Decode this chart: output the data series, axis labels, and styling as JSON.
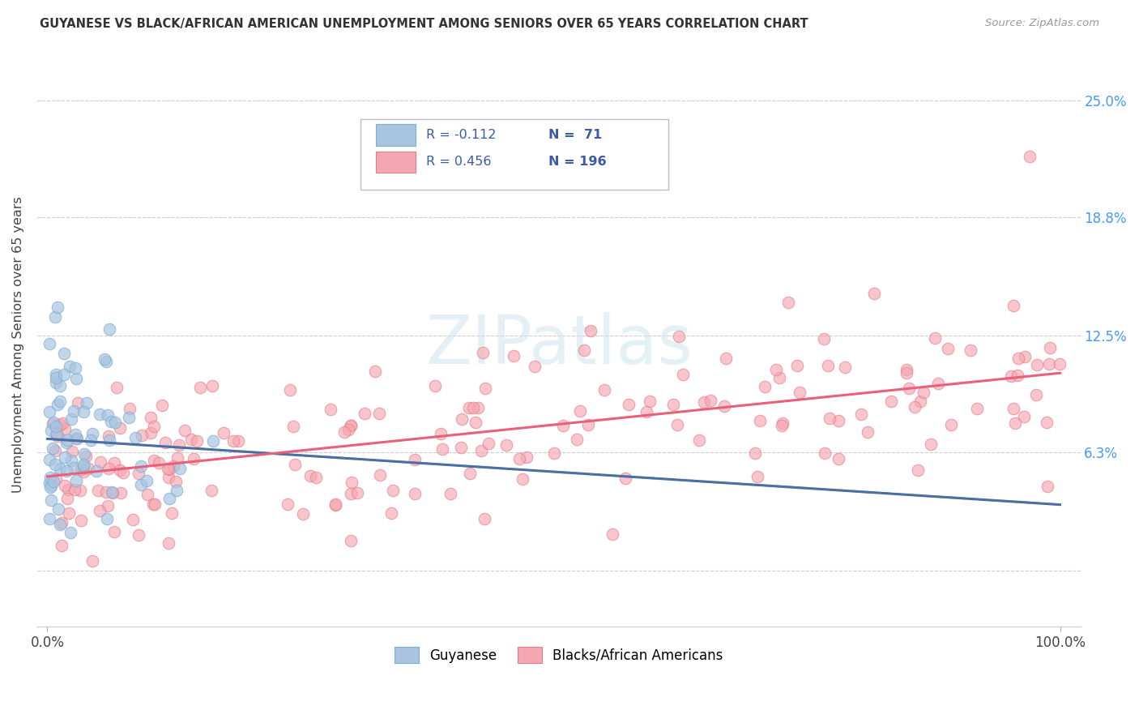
{
  "title": "GUYANESE VS BLACK/AFRICAN AMERICAN UNEMPLOYMENT AMONG SENIORS OVER 65 YEARS CORRELATION CHART",
  "source": "Source: ZipAtlas.com",
  "ylabel": "Unemployment Among Seniors over 65 years",
  "ytick_vals": [
    0.0,
    6.3,
    12.5,
    18.8,
    25.0
  ],
  "ytick_labels": [
    "",
    "6.3%",
    "12.5%",
    "18.8%",
    "25.0%"
  ],
  "xlim": [
    -1,
    102
  ],
  "ylim": [
    -3,
    27
  ],
  "color_blue": "#A8C4E0",
  "color_pink": "#F4A7B0",
  "color_blue_edge": "#7BAFD4",
  "color_pink_edge": "#E87A8C",
  "color_blue_line": "#4A6FA5",
  "color_pink_line": "#E8607A",
  "color_blue_text": "#3B5BA5",
  "color_right_axis": "#4499FF",
  "watermark_color": "#D8E8F0",
  "background": "#FFFFFF",
  "legend_r1": "R = -0.112",
  "legend_n1": "N =  71",
  "legend_r2": "R = 0.456",
  "legend_n2": "N = 196",
  "guy_line_x0": 0,
  "guy_line_x1": 100,
  "guy_line_y0": 7.0,
  "guy_line_y1": 3.5,
  "black_line_x0": 0,
  "black_line_x1": 100,
  "black_line_y0": 5.0,
  "black_line_y1": 10.5
}
